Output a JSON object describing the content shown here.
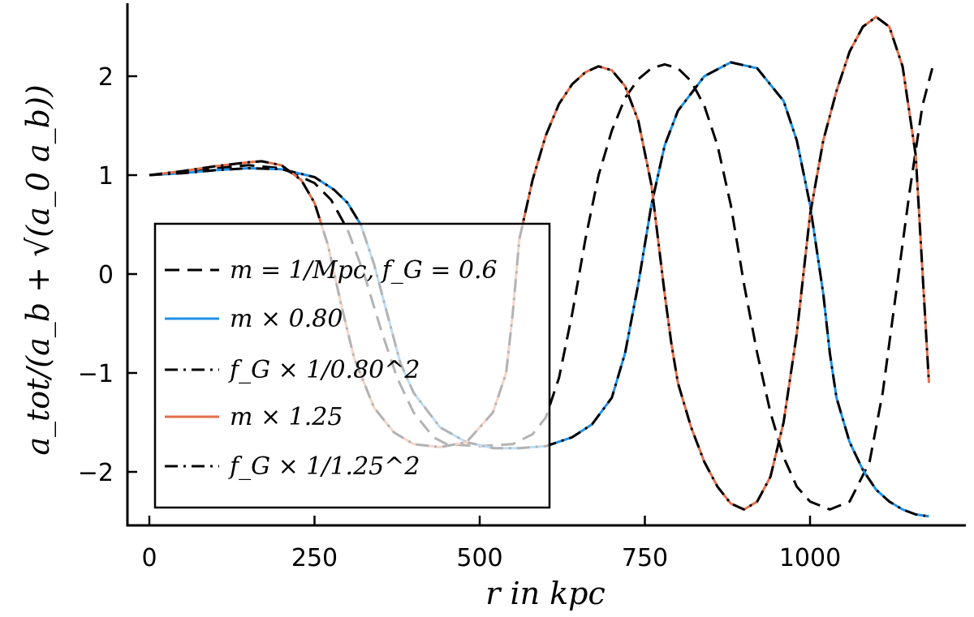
{
  "chart_data": {
    "type": "line",
    "xlabel": "r in kpc",
    "ylabel": "a_tot/(a_b + √(a_0 a_b))",
    "xlim": [
      -30,
      1230
    ],
    "ylim": [
      -2.6,
      2.75
    ],
    "x_ticks": [
      0,
      250,
      500,
      750,
      1000
    ],
    "x_tick_labels": [
      "0",
      "250",
      "500",
      "750",
      "1000"
    ],
    "y_ticks": [
      -2,
      -1,
      0,
      1,
      2
    ],
    "y_tick_labels": [
      "−2",
      "−1",
      "0",
      "1",
      "2"
    ],
    "grid": false,
    "legend": "lower-left",
    "colors": {
      "blue": "#1f91e6",
      "orange": "#e26f4c",
      "black": "#000000"
    },
    "series": [
      {
        "name": "m = 1/Mpc, f_G = 0.6",
        "color": "#000000",
        "dash": "dashed",
        "x": [
          0,
          50,
          100,
          150,
          200,
          250,
          275,
          300,
          325,
          350,
          375,
          400,
          430,
          450,
          500,
          550,
          580,
          600,
          620,
          640,
          660,
          680,
          700,
          720,
          740,
          760,
          780,
          800,
          820,
          840,
          860,
          880,
          900,
          920,
          940,
          960,
          980,
          1000,
          1030,
          1060,
          1090,
          1110,
          1130,
          1150,
          1170,
          1185
        ],
        "y": [
          1.0,
          1.03,
          1.07,
          1.1,
          1.07,
          0.92,
          0.75,
          0.45,
          0.0,
          -0.55,
          -1.05,
          -1.4,
          -1.65,
          -1.72,
          -1.74,
          -1.72,
          -1.62,
          -1.45,
          -1.05,
          -0.4,
          0.35,
          1.0,
          1.45,
          1.78,
          1.97,
          2.08,
          2.12,
          2.08,
          1.95,
          1.7,
          1.3,
          0.7,
          -0.1,
          -0.8,
          -1.4,
          -1.85,
          -2.15,
          -2.3,
          -2.38,
          -2.3,
          -1.9,
          -1.2,
          -0.2,
          0.8,
          1.7,
          2.08
        ]
      },
      {
        "name": "m × 0.80",
        "color": "#1f91e6",
        "dash": "solid",
        "x": [
          0,
          50,
          100,
          150,
          200,
          250,
          280,
          300,
          320,
          340,
          360,
          380,
          400,
          440,
          480,
          520,
          560,
          600,
          640,
          670,
          700,
          720,
          740,
          760,
          780,
          800,
          840,
          880,
          920,
          960,
          980,
          1000,
          1020,
          1030,
          1040,
          1060,
          1080,
          1100,
          1120,
          1140,
          1160,
          1180
        ],
        "y": [
          1.0,
          1.02,
          1.05,
          1.07,
          1.06,
          0.98,
          0.85,
          0.72,
          0.5,
          0.1,
          -0.4,
          -0.9,
          -1.2,
          -1.55,
          -1.7,
          -1.76,
          -1.76,
          -1.74,
          -1.65,
          -1.52,
          -1.25,
          -0.8,
          -0.1,
          0.7,
          1.3,
          1.65,
          2.0,
          2.14,
          2.08,
          1.75,
          1.35,
          0.7,
          -0.2,
          -0.8,
          -1.25,
          -1.7,
          -1.98,
          -2.18,
          -2.3,
          -2.38,
          -2.43,
          -2.45
        ]
      },
      {
        "name": "f_G × 1/0.80^2",
        "color": "#000000",
        "dash": "dashdot",
        "x": [
          0,
          50,
          100,
          150,
          200,
          250,
          280,
          300,
          320,
          340,
          360,
          380,
          400,
          440,
          480,
          520,
          560,
          600,
          640,
          670,
          700,
          720,
          740,
          760,
          780,
          800,
          840,
          880,
          920,
          960,
          980,
          1000,
          1020,
          1030,
          1040,
          1060,
          1080,
          1100,
          1120,
          1140,
          1160,
          1180
        ],
        "y": [
          1.0,
          1.02,
          1.05,
          1.07,
          1.06,
          0.98,
          0.85,
          0.72,
          0.5,
          0.1,
          -0.4,
          -0.9,
          -1.2,
          -1.55,
          -1.7,
          -1.76,
          -1.76,
          -1.74,
          -1.65,
          -1.52,
          -1.25,
          -0.8,
          -0.1,
          0.7,
          1.3,
          1.65,
          2.0,
          2.14,
          2.08,
          1.75,
          1.35,
          0.7,
          -0.2,
          -0.8,
          -1.25,
          -1.7,
          -1.98,
          -2.18,
          -2.3,
          -2.38,
          -2.43,
          -2.45
        ]
      },
      {
        "name": "m × 1.25",
        "color": "#e26f4c",
        "dash": "solid",
        "x": [
          0,
          50,
          100,
          150,
          170,
          200,
          230,
          250,
          270,
          290,
          310,
          340,
          370,
          400,
          440,
          480,
          520,
          540,
          550,
          560,
          580,
          600,
          620,
          640,
          660,
          680,
          700,
          720,
          740,
          760,
          780,
          790,
          800,
          820,
          840,
          860,
          880,
          900,
          920,
          940,
          960,
          980,
          1000,
          1020,
          1040,
          1060,
          1080,
          1100,
          1120,
          1140,
          1160,
          1180
        ],
        "y": [
          1.0,
          1.04,
          1.09,
          1.13,
          1.14,
          1.1,
          0.95,
          0.72,
          0.3,
          -0.3,
          -0.85,
          -1.35,
          -1.6,
          -1.72,
          -1.75,
          -1.7,
          -1.4,
          -1.0,
          -0.4,
          0.35,
          0.95,
          1.4,
          1.72,
          1.92,
          2.04,
          2.1,
          2.06,
          1.9,
          1.55,
          0.9,
          -0.2,
          -0.7,
          -1.1,
          -1.55,
          -1.9,
          -2.15,
          -2.32,
          -2.38,
          -2.3,
          -2.05,
          -1.5,
          -0.6,
          0.6,
          1.35,
          1.85,
          2.25,
          2.5,
          2.6,
          2.5,
          2.1,
          1.2,
          -1.1
        ]
      },
      {
        "name": "f_G × 1/1.25^2",
        "color": "#000000",
        "dash": "dashdot",
        "x": [
          0,
          50,
          100,
          150,
          170,
          200,
          230,
          250,
          270,
          290,
          310,
          340,
          370,
          400,
          440,
          480,
          520,
          540,
          550,
          560,
          580,
          600,
          620,
          640,
          660,
          680,
          700,
          720,
          740,
          760,
          780,
          790,
          800,
          820,
          840,
          860,
          880,
          900,
          920,
          940,
          960,
          980,
          1000,
          1020,
          1040,
          1060,
          1080,
          1100,
          1120,
          1140,
          1160,
          1180
        ],
        "y": [
          1.0,
          1.04,
          1.09,
          1.13,
          1.14,
          1.1,
          0.95,
          0.72,
          0.3,
          -0.3,
          -0.85,
          -1.35,
          -1.6,
          -1.72,
          -1.75,
          -1.7,
          -1.4,
          -1.0,
          -0.4,
          0.35,
          0.95,
          1.4,
          1.72,
          1.92,
          2.04,
          2.1,
          2.06,
          1.9,
          1.55,
          0.9,
          -0.2,
          -0.7,
          -1.1,
          -1.55,
          -1.9,
          -2.15,
          -2.32,
          -2.38,
          -2.3,
          -2.05,
          -1.5,
          -0.6,
          0.6,
          1.35,
          1.85,
          2.25,
          2.5,
          2.6,
          2.5,
          2.1,
          1.2,
          -1.1
        ]
      }
    ]
  }
}
